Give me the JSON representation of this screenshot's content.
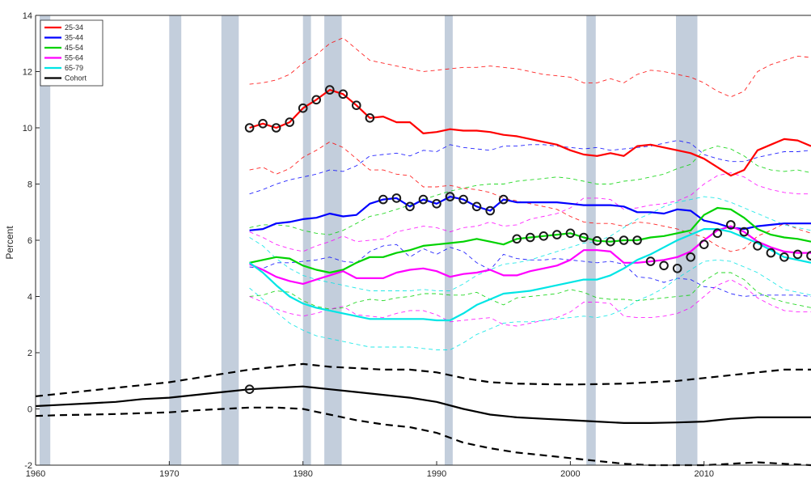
{
  "chart_data": {
    "type": "line",
    "ylabel": "Percent",
    "xlabel": "",
    "title": "",
    "xlim": [
      1960,
      2018
    ],
    "ylim": [
      -2,
      14
    ],
    "xticks": [
      1960,
      1970,
      1980,
      1990,
      2000,
      2010
    ],
    "yticks": [
      -2,
      0,
      2,
      4,
      6,
      8,
      10,
      12,
      14
    ],
    "grid": false,
    "legend_position": "top-left",
    "recession_bands": [
      [
        1960.3,
        1961.1
      ],
      [
        1970.0,
        1970.9
      ],
      [
        1973.9,
        1975.2
      ],
      [
        1980.0,
        1980.6
      ],
      [
        1981.6,
        1982.9
      ],
      [
        1990.6,
        1991.2
      ],
      [
        2001.2,
        2001.9
      ],
      [
        2007.9,
        2009.5
      ]
    ],
    "series": [
      {
        "name": "25-34",
        "color": "#ff0000",
        "x": [
          1976,
          1977,
          1978,
          1979,
          1980,
          1981,
          1982,
          1983,
          1984,
          1985,
          1986,
          1987,
          1988,
          1989,
          1990,
          1991,
          1992,
          1993,
          1994,
          1995,
          1996,
          1997,
          1998,
          1999,
          2000,
          2001,
          2002,
          2003,
          2004,
          2005,
          2006,
          2007,
          2008,
          2009,
          2010,
          2011,
          2012,
          2013,
          2014,
          2015,
          2016,
          2017,
          2018
        ],
        "y": [
          10.0,
          10.15,
          10.0,
          10.2,
          10.7,
          11.0,
          11.35,
          11.2,
          10.8,
          10.35,
          10.4,
          10.2,
          10.2,
          9.8,
          9.85,
          9.95,
          9.9,
          9.9,
          9.85,
          9.75,
          9.7,
          9.6,
          9.5,
          9.4,
          9.2,
          9.05,
          9.0,
          9.1,
          9.0,
          9.35,
          9.4,
          9.3,
          9.2,
          9.1,
          8.9,
          8.6,
          8.3,
          8.5,
          9.2,
          9.4,
          9.6,
          9.55,
          9.35
        ],
        "ci_upper": [
          11.55,
          11.6,
          11.7,
          11.9,
          12.3,
          12.6,
          13.0,
          13.2,
          12.8,
          12.4,
          12.3,
          12.2,
          12.1,
          12.0,
          12.05,
          12.1,
          12.15,
          12.15,
          12.2,
          12.15,
          12.1,
          12.0,
          11.9,
          11.85,
          11.8,
          11.6,
          11.6,
          11.75,
          11.6,
          11.9,
          12.05,
          12.0,
          11.9,
          11.8,
          11.6,
          11.3,
          11.1,
          11.3,
          12.0,
          12.25,
          12.4,
          12.55,
          12.5
        ],
        "ci_lower": [
          8.5,
          8.6,
          8.35,
          8.55,
          8.95,
          9.2,
          9.5,
          9.3,
          8.9,
          8.5,
          8.5,
          8.35,
          8.3,
          7.9,
          7.9,
          7.95,
          7.85,
          7.8,
          7.7,
          7.5,
          7.4,
          7.3,
          7.2,
          7.1,
          6.85,
          6.65,
          6.6,
          6.6,
          6.5,
          6.65,
          6.6,
          6.5,
          6.4,
          6.25,
          6.1,
          5.8,
          5.6,
          5.7,
          6.15,
          6.35,
          6.6,
          6.4,
          6.25
        ]
      },
      {
        "name": "35-44",
        "color": "#0000ff",
        "x": [
          1976,
          1977,
          1978,
          1979,
          1980,
          1981,
          1982,
          1983,
          1984,
          1985,
          1986,
          1987,
          1988,
          1989,
          1990,
          1991,
          1992,
          1993,
          1994,
          1995,
          1996,
          1997,
          1998,
          1999,
          2000,
          2001,
          2002,
          2003,
          2004,
          2005,
          2006,
          2007,
          2008,
          2009,
          2010,
          2011,
          2012,
          2013,
          2014,
          2015,
          2016,
          2017,
          2018
        ],
        "y": [
          6.35,
          6.4,
          6.6,
          6.65,
          6.75,
          6.8,
          6.95,
          6.85,
          6.9,
          7.3,
          7.45,
          7.5,
          7.2,
          7.45,
          7.3,
          7.55,
          7.45,
          7.2,
          7.05,
          7.45,
          7.35,
          7.35,
          7.35,
          7.35,
          7.3,
          7.25,
          7.25,
          7.25,
          7.2,
          7.0,
          7.0,
          6.95,
          7.1,
          7.05,
          6.7,
          6.6,
          6.45,
          6.4,
          6.5,
          6.55,
          6.6,
          6.6,
          6.6
        ],
        "ci_upper": [
          7.65,
          7.8,
          8.0,
          8.15,
          8.25,
          8.35,
          8.5,
          8.45,
          8.65,
          9.0,
          9.05,
          9.1,
          9.0,
          9.2,
          9.15,
          9.4,
          9.3,
          9.25,
          9.2,
          9.35,
          9.35,
          9.4,
          9.4,
          9.35,
          9.3,
          9.25,
          9.3,
          9.2,
          9.25,
          9.3,
          9.35,
          9.45,
          9.55,
          9.45,
          9.05,
          8.9,
          8.8,
          8.8,
          8.95,
          9.05,
          9.15,
          9.15,
          9.2
        ],
        "ci_lower": [
          5.05,
          5.0,
          5.2,
          5.2,
          5.25,
          5.3,
          5.4,
          5.25,
          5.2,
          5.6,
          5.8,
          5.85,
          5.4,
          5.7,
          5.5,
          5.75,
          5.6,
          5.2,
          4.95,
          5.5,
          5.35,
          5.3,
          5.3,
          5.35,
          5.3,
          5.25,
          5.2,
          5.25,
          5.15,
          4.7,
          4.65,
          4.5,
          4.65,
          4.6,
          4.35,
          4.3,
          4.1,
          4.0,
          4.05,
          4.05,
          4.05,
          4.05,
          4.0
        ]
      },
      {
        "name": "45-54",
        "color": "#00d200",
        "x": [
          1976,
          1977,
          1978,
          1979,
          1980,
          1981,
          1982,
          1983,
          1984,
          1985,
          1986,
          1987,
          1988,
          1989,
          1990,
          1991,
          1992,
          1993,
          1994,
          1995,
          1996,
          1997,
          1998,
          1999,
          2000,
          2001,
          2002,
          2003,
          2004,
          2005,
          2006,
          2007,
          2008,
          2009,
          2010,
          2011,
          2012,
          2013,
          2014,
          2015,
          2016,
          2017,
          2018
        ],
        "y": [
          5.2,
          5.3,
          5.4,
          5.35,
          5.1,
          4.95,
          4.85,
          4.95,
          5.2,
          5.4,
          5.4,
          5.55,
          5.65,
          5.8,
          5.85,
          5.9,
          5.95,
          6.05,
          5.95,
          5.85,
          6.05,
          6.1,
          6.15,
          6.2,
          6.25,
          6.1,
          5.98,
          5.95,
          6.0,
          6.0,
          6.1,
          6.15,
          6.25,
          6.35,
          6.9,
          7.15,
          7.1,
          6.8,
          6.4,
          6.2,
          6.1,
          6.05,
          5.95
        ],
        "ci_upper": [
          6.45,
          6.55,
          6.55,
          6.5,
          6.35,
          6.25,
          6.2,
          6.35,
          6.6,
          6.85,
          6.95,
          7.1,
          7.25,
          7.45,
          7.6,
          7.75,
          7.85,
          7.95,
          8.0,
          8.0,
          8.1,
          8.15,
          8.2,
          8.25,
          8.2,
          8.1,
          8.0,
          8.0,
          8.1,
          8.15,
          8.25,
          8.35,
          8.55,
          8.7,
          9.2,
          9.35,
          9.25,
          9.0,
          8.65,
          8.5,
          8.45,
          8.5,
          8.4
        ],
        "ci_lower": [
          4.0,
          4.05,
          4.2,
          4.15,
          3.85,
          3.65,
          3.55,
          3.6,
          3.8,
          3.9,
          3.85,
          3.95,
          4.0,
          4.1,
          4.1,
          4.05,
          4.05,
          4.15,
          3.9,
          3.7,
          3.95,
          4.0,
          4.05,
          4.1,
          4.25,
          4.15,
          3.95,
          3.9,
          3.9,
          3.85,
          3.9,
          3.95,
          4.0,
          4.05,
          4.55,
          4.85,
          4.85,
          4.6,
          4.15,
          3.95,
          3.8,
          3.7,
          3.6
        ]
      },
      {
        "name": "55-64",
        "color": "#ff00ff",
        "x": [
          1976,
          1977,
          1978,
          1979,
          1980,
          1981,
          1982,
          1983,
          1984,
          1985,
          1986,
          1987,
          1988,
          1989,
          1990,
          1991,
          1992,
          1993,
          1994,
          1995,
          1996,
          1997,
          1998,
          1999,
          2000,
          2001,
          2002,
          2003,
          2004,
          2005,
          2006,
          2007,
          2008,
          2009,
          2010,
          2011,
          2012,
          2013,
          2014,
          2015,
          2016,
          2017,
          2018
        ],
        "y": [
          5.15,
          4.95,
          4.7,
          4.55,
          4.45,
          4.6,
          4.75,
          4.9,
          4.65,
          4.65,
          4.65,
          4.85,
          4.95,
          5.0,
          4.9,
          4.7,
          4.8,
          4.85,
          4.95,
          4.75,
          4.75,
          4.9,
          5.0,
          5.1,
          5.3,
          5.65,
          5.65,
          5.6,
          5.2,
          5.2,
          5.25,
          5.3,
          5.4,
          5.6,
          6.0,
          6.35,
          6.5,
          6.3,
          5.95,
          5.75,
          5.6,
          5.55,
          5.55
        ],
        "ci_upper": [
          6.3,
          6.1,
          5.85,
          5.7,
          5.6,
          5.8,
          5.95,
          6.15,
          5.95,
          6.0,
          6.05,
          6.3,
          6.4,
          6.5,
          6.45,
          6.3,
          6.45,
          6.5,
          6.65,
          6.5,
          6.55,
          6.75,
          6.85,
          6.95,
          7.15,
          7.5,
          7.5,
          7.45,
          7.1,
          7.15,
          7.25,
          7.3,
          7.4,
          7.6,
          8.0,
          8.3,
          8.4,
          8.25,
          7.95,
          7.8,
          7.7,
          7.65,
          7.65
        ],
        "ci_lower": [
          4.0,
          3.8,
          3.55,
          3.4,
          3.3,
          3.4,
          3.55,
          3.65,
          3.35,
          3.3,
          3.25,
          3.4,
          3.5,
          3.5,
          3.35,
          3.1,
          3.15,
          3.2,
          3.25,
          3.0,
          2.95,
          3.05,
          3.15,
          3.25,
          3.45,
          3.8,
          3.8,
          3.75,
          3.3,
          3.25,
          3.25,
          3.3,
          3.4,
          3.6,
          4.0,
          4.4,
          4.6,
          4.35,
          3.95,
          3.7,
          3.5,
          3.45,
          3.45
        ]
      },
      {
        "name": "65-79",
        "color": "#00e5e5",
        "x": [
          1976,
          1977,
          1978,
          1979,
          1980,
          1981,
          1982,
          1983,
          1984,
          1985,
          1986,
          1987,
          1988,
          1989,
          1990,
          1991,
          1992,
          1993,
          1994,
          1995,
          1996,
          1997,
          1998,
          1999,
          2000,
          2001,
          2002,
          2003,
          2004,
          2005,
          2006,
          2007,
          2008,
          2009,
          2010,
          2011,
          2012,
          2013,
          2014,
          2015,
          2016,
          2017,
          2018
        ],
        "y": [
          5.2,
          4.85,
          4.4,
          4.0,
          3.75,
          3.6,
          3.5,
          3.4,
          3.3,
          3.2,
          3.2,
          3.2,
          3.2,
          3.2,
          3.15,
          3.15,
          3.4,
          3.7,
          3.9,
          4.1,
          4.15,
          4.2,
          4.3,
          4.4,
          4.5,
          4.6,
          4.6,
          4.75,
          5.0,
          5.3,
          5.5,
          5.75,
          6.0,
          6.2,
          6.4,
          6.4,
          6.3,
          6.1,
          5.9,
          5.65,
          5.4,
          5.3,
          5.2
        ],
        "ci_upper": [
          6.1,
          5.8,
          5.35,
          5.0,
          4.75,
          4.6,
          4.5,
          4.4,
          4.3,
          4.2,
          4.2,
          4.2,
          4.2,
          4.25,
          4.2,
          4.2,
          4.45,
          4.75,
          4.95,
          5.15,
          5.2,
          5.3,
          5.45,
          5.6,
          5.75,
          5.9,
          5.95,
          6.15,
          6.45,
          6.75,
          6.95,
          7.2,
          7.35,
          7.45,
          7.55,
          7.5,
          7.35,
          7.15,
          6.95,
          6.75,
          6.55,
          6.45,
          6.35
        ],
        "ci_lower": [
          4.3,
          3.9,
          3.45,
          3.05,
          2.8,
          2.6,
          2.5,
          2.4,
          2.3,
          2.2,
          2.2,
          2.2,
          2.2,
          2.15,
          2.1,
          2.1,
          2.35,
          2.65,
          2.85,
          3.05,
          3.1,
          3.1,
          3.15,
          3.2,
          3.25,
          3.3,
          3.25,
          3.35,
          3.55,
          3.85,
          4.05,
          4.3,
          4.65,
          4.95,
          5.25,
          5.3,
          5.25,
          5.05,
          4.85,
          4.55,
          4.25,
          4.15,
          4.05
        ]
      },
      {
        "name": "Cohort",
        "color": "#000000",
        "x": [
          1960,
          1962,
          1964,
          1966,
          1968,
          1970,
          1972,
          1974,
          1976,
          1978,
          1980,
          1982,
          1984,
          1986,
          1988,
          1990,
          1992,
          1994,
          1996,
          1998,
          2000,
          2002,
          2004,
          2006,
          2008,
          2010,
          2012,
          2014,
          2016,
          2018
        ],
        "y": [
          0.1,
          0.15,
          0.2,
          0.25,
          0.35,
          0.4,
          0.5,
          0.6,
          0.7,
          0.75,
          0.8,
          0.7,
          0.6,
          0.5,
          0.4,
          0.25,
          0.0,
          -0.2,
          -0.3,
          -0.35,
          -0.4,
          -0.45,
          -0.5,
          -0.5,
          -0.48,
          -0.45,
          -0.35,
          -0.3,
          -0.3,
          -0.3
        ],
        "ci_upper": [
          0.45,
          0.55,
          0.65,
          0.75,
          0.85,
          0.95,
          1.1,
          1.25,
          1.4,
          1.5,
          1.6,
          1.5,
          1.45,
          1.4,
          1.4,
          1.3,
          1.1,
          0.95,
          0.9,
          0.88,
          0.87,
          0.88,
          0.9,
          0.95,
          1.0,
          1.1,
          1.2,
          1.3,
          1.4,
          1.4
        ],
        "ci_lower": [
          -0.25,
          -0.22,
          -0.2,
          -0.18,
          -0.15,
          -0.12,
          -0.05,
          0.0,
          0.05,
          0.05,
          0.0,
          -0.2,
          -0.4,
          -0.55,
          -0.65,
          -0.85,
          -1.2,
          -1.4,
          -1.55,
          -1.65,
          -1.75,
          -1.85,
          -1.95,
          -2.0,
          -2.0,
          -2.0,
          -1.95,
          -1.9,
          -1.95,
          -2.0
        ]
      }
    ],
    "cohort_markers": [
      {
        "x": 1976,
        "y": 10.0
      },
      {
        "x": 1977,
        "y": 10.15
      },
      {
        "x": 1978,
        "y": 10.0
      },
      {
        "x": 1979,
        "y": 10.2
      },
      {
        "x": 1980,
        "y": 10.7
      },
      {
        "x": 1981,
        "y": 11.0
      },
      {
        "x": 1982,
        "y": 11.35
      },
      {
        "x": 1983,
        "y": 11.2
      },
      {
        "x": 1984,
        "y": 10.8
      },
      {
        "x": 1985,
        "y": 10.35
      },
      {
        "x": 1986,
        "y": 7.45
      },
      {
        "x": 1987,
        "y": 7.5
      },
      {
        "x": 1988,
        "y": 7.2
      },
      {
        "x": 1989,
        "y": 7.45
      },
      {
        "x": 1990,
        "y": 7.3
      },
      {
        "x": 1991,
        "y": 7.55
      },
      {
        "x": 1992,
        "y": 7.45
      },
      {
        "x": 1993,
        "y": 7.2
      },
      {
        "x": 1994,
        "y": 7.05
      },
      {
        "x": 1995,
        "y": 7.45
      },
      {
        "x": 1996,
        "y": 6.05
      },
      {
        "x": 1997,
        "y": 6.1
      },
      {
        "x": 1998,
        "y": 6.15
      },
      {
        "x": 1999,
        "y": 6.2
      },
      {
        "x": 2000,
        "y": 6.25
      },
      {
        "x": 2001,
        "y": 6.1
      },
      {
        "x": 2002,
        "y": 5.98
      },
      {
        "x": 2003,
        "y": 5.95
      },
      {
        "x": 2004,
        "y": 6.0
      },
      {
        "x": 2005,
        "y": 6.0
      },
      {
        "x": 2006,
        "y": 5.25
      },
      {
        "x": 2007,
        "y": 5.1
      },
      {
        "x": 2008,
        "y": 5.0
      },
      {
        "x": 2009,
        "y": 5.4
      },
      {
        "x": 2010,
        "y": 5.85
      },
      {
        "x": 2011,
        "y": 6.25
      },
      {
        "x": 2012,
        "y": 6.55
      },
      {
        "x": 2013,
        "y": 6.3
      },
      {
        "x": 2014,
        "y": 5.8
      },
      {
        "x": 2015,
        "y": 5.55
      },
      {
        "x": 2016,
        "y": 5.4
      },
      {
        "x": 2017,
        "y": 5.5
      },
      {
        "x": 2018,
        "y": 5.45
      },
      {
        "x": 1976,
        "y": 0.7
      }
    ]
  }
}
